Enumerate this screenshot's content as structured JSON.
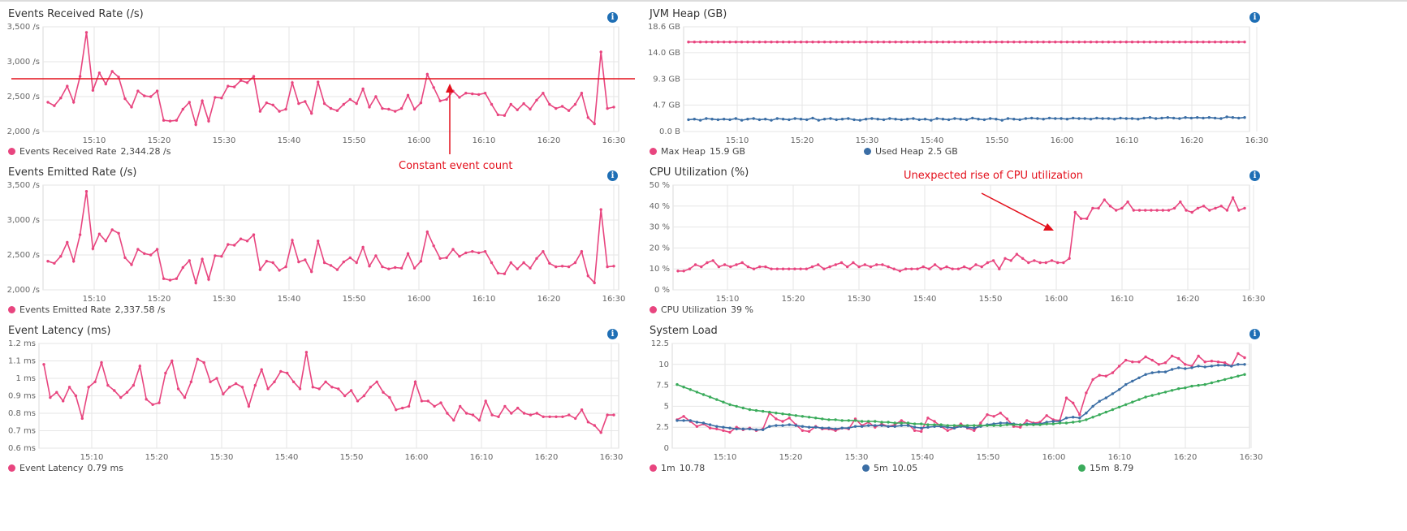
{
  "colors": {
    "pink": "#e8457f",
    "blue": "#3b6ea5",
    "green": "#3aab5b",
    "annotation": "#e3101c",
    "grid": "#e6e6e6",
    "info": "#1f6fb5"
  },
  "icons": {
    "info": "info-icon"
  },
  "annotations": {
    "constant": "Constant event count",
    "cpu": "Unexpected rise of CPU utilization"
  },
  "chart_data": [
    {
      "type": "line",
      "title": "Events Received Rate (/s)",
      "x_ticks": [
        "15:10",
        "15:20",
        "15:30",
        "15:40",
        "15:50",
        "16:00",
        "16:10",
        "16:20",
        "16:30"
      ],
      "y_ticks": [
        "2,000 /s",
        "2,500 /s",
        "3,000 /s",
        "3,500 /s"
      ],
      "ylim": [
        2000,
        3500
      ],
      "series": [
        {
          "name": "Events Received Rate",
          "color": "#e8457f",
          "current": "2,344.28 /s",
          "values": [
            2420,
            2370,
            2480,
            2650,
            2420,
            2790,
            3420,
            2590,
            2840,
            2680,
            2860,
            2780,
            2470,
            2350,
            2580,
            2510,
            2500,
            2580,
            2160,
            2150,
            2160,
            2320,
            2420,
            2100,
            2440,
            2150,
            2490,
            2480,
            2650,
            2640,
            2730,
            2700,
            2790,
            2290,
            2410,
            2380,
            2290,
            2320,
            2700,
            2400,
            2430,
            2260,
            2710,
            2400,
            2330,
            2300,
            2390,
            2460,
            2400,
            2610,
            2350,
            2500,
            2330,
            2320,
            2290,
            2330,
            2520,
            2320,
            2410,
            2820,
            2630,
            2440,
            2460,
            2580,
            2490,
            2550,
            2540,
            2530,
            2550,
            2390,
            2240,
            2230,
            2390,
            2310,
            2400,
            2320,
            2450,
            2550,
            2390,
            2330,
            2360,
            2300,
            2390,
            2550,
            2200,
            2110,
            3140,
            2330,
            2350
          ]
        }
      ]
    },
    {
      "type": "line",
      "title": "Events Emitted Rate (/s)",
      "x_ticks": [
        "15:10",
        "15:20",
        "15:30",
        "15:40",
        "15:50",
        "16:00",
        "16:10",
        "16:20",
        "16:30"
      ],
      "y_ticks": [
        "2,000 /s",
        "2,500 /s",
        "3,000 /s",
        "3,500 /s"
      ],
      "ylim": [
        2000,
        3500
      ],
      "series": [
        {
          "name": "Events Emitted Rate",
          "color": "#e8457f",
          "current": "2,337.58 /s",
          "values": [
            2410,
            2380,
            2480,
            2680,
            2410,
            2790,
            3410,
            2590,
            2800,
            2700,
            2860,
            2810,
            2460,
            2360,
            2580,
            2520,
            2500,
            2580,
            2160,
            2140,
            2160,
            2320,
            2420,
            2100,
            2440,
            2150,
            2490,
            2480,
            2650,
            2640,
            2730,
            2700,
            2790,
            2290,
            2410,
            2390,
            2280,
            2330,
            2710,
            2400,
            2430,
            2260,
            2700,
            2390,
            2350,
            2290,
            2400,
            2460,
            2390,
            2610,
            2340,
            2490,
            2330,
            2300,
            2320,
            2310,
            2520,
            2310,
            2410,
            2830,
            2630,
            2450,
            2460,
            2580,
            2480,
            2530,
            2550,
            2530,
            2550,
            2390,
            2240,
            2230,
            2390,
            2300,
            2390,
            2310,
            2450,
            2550,
            2380,
            2330,
            2340,
            2330,
            2390,
            2550,
            2200,
            2100,
            3150,
            2330,
            2340
          ]
        }
      ]
    },
    {
      "type": "line",
      "title": "Event Latency (ms)",
      "x_ticks": [
        "15:10",
        "15:20",
        "15:30",
        "15:40",
        "15:50",
        "16:00",
        "16:10",
        "16:20",
        "16:30"
      ],
      "y_ticks": [
        "0.6 ms",
        "0.7 ms",
        "0.8 ms",
        "0.9 ms",
        "1 ms",
        "1.1 ms",
        "1.2 ms"
      ],
      "ylim": [
        0.6,
        1.2
      ],
      "series": [
        {
          "name": "Event Latency",
          "color": "#e8457f",
          "current": "0.79 ms",
          "values": [
            1.08,
            0.89,
            0.92,
            0.87,
            0.95,
            0.9,
            0.77,
            0.95,
            0.98,
            1.09,
            0.96,
            0.93,
            0.89,
            0.92,
            0.96,
            1.07,
            0.88,
            0.85,
            0.86,
            1.03,
            1.1,
            0.94,
            0.89,
            0.98,
            1.11,
            1.09,
            0.98,
            1.0,
            0.91,
            0.95,
            0.97,
            0.95,
            0.84,
            0.96,
            1.05,
            0.94,
            0.98,
            1.04,
            1.03,
            0.98,
            0.94,
            1.15,
            0.95,
            0.94,
            0.98,
            0.95,
            0.94,
            0.9,
            0.93,
            0.87,
            0.9,
            0.95,
            0.98,
            0.92,
            0.89,
            0.82,
            0.83,
            0.84,
            0.98,
            0.87,
            0.87,
            0.84,
            0.86,
            0.8,
            0.76,
            0.84,
            0.8,
            0.79,
            0.76,
            0.87,
            0.79,
            0.78,
            0.84,
            0.8,
            0.83,
            0.8,
            0.79,
            0.8,
            0.78,
            0.78,
            0.78,
            0.78,
            0.79,
            0.77,
            0.82,
            0.75,
            0.73,
            0.69,
            0.79,
            0.79
          ]
        }
      ]
    },
    {
      "type": "line",
      "title": "JVM Heap (GB)",
      "x_ticks": [
        "15:10",
        "15:20",
        "15:30",
        "15:40",
        "15:50",
        "16:00",
        "16:10",
        "16:20",
        "16:30"
      ],
      "y_ticks": [
        "0.0 B",
        "4.7 GB",
        "9.3 GB",
        "14.0 GB",
        "18.6 GB"
      ],
      "ylim": [
        0,
        18.6
      ],
      "series": [
        {
          "name": "Max Heap",
          "color": "#e8457f",
          "current": "15.9 GB",
          "constant": 15.9
        },
        {
          "name": "Used Heap",
          "color": "#3b6ea5",
          "current": "2.5 GB",
          "values": [
            2.1,
            2.2,
            2.0,
            2.3,
            2.2,
            2.1,
            2.2,
            2.1,
            2.3,
            2.0,
            2.2,
            2.3,
            2.1,
            2.2,
            2.0,
            2.3,
            2.2,
            2.1,
            2.3,
            2.2,
            2.1,
            2.4,
            2.0,
            2.2,
            2.3,
            2.1,
            2.2,
            2.3,
            2.1,
            2.0,
            2.2,
            2.3,
            2.2,
            2.1,
            2.3,
            2.2,
            2.1,
            2.2,
            2.3,
            2.1,
            2.2,
            2.0,
            2.3,
            2.2,
            2.1,
            2.3,
            2.2,
            2.1,
            2.4,
            2.2,
            2.1,
            2.3,
            2.2,
            2.0,
            2.3,
            2.2,
            2.1,
            2.3,
            2.4,
            2.3,
            2.2,
            2.4,
            2.3,
            2.3,
            2.2,
            2.4,
            2.3,
            2.3,
            2.2,
            2.4,
            2.3,
            2.3,
            2.2,
            2.4,
            2.3,
            2.3,
            2.2,
            2.4,
            2.5,
            2.3,
            2.4,
            2.5,
            2.4,
            2.3,
            2.5,
            2.4,
            2.5,
            2.4,
            2.5,
            2.4,
            2.3,
            2.6,
            2.5,
            2.4,
            2.5
          ]
        }
      ]
    },
    {
      "type": "line",
      "title": "CPU Utilization (%)",
      "x_ticks": [
        "15:10",
        "15:20",
        "15:30",
        "15:40",
        "15:50",
        "16:00",
        "16:10",
        "16:20",
        "16:30"
      ],
      "y_ticks": [
        "0 %",
        "10 %",
        "20 %",
        "30 %",
        "40 %",
        "50 %"
      ],
      "ylim": [
        0,
        50
      ],
      "series": [
        {
          "name": "CPU Utilization",
          "color": "#e8457f",
          "current": "39 %",
          "values": [
            9,
            9,
            10,
            12,
            11,
            13,
            14,
            11,
            12,
            11,
            12,
            13,
            11,
            10,
            11,
            11,
            10,
            10,
            10,
            10,
            10,
            10,
            10,
            11,
            12,
            10,
            11,
            12,
            13,
            11,
            13,
            11,
            12,
            11,
            12,
            12,
            11,
            10,
            9,
            10,
            10,
            10,
            11,
            10,
            12,
            10,
            11,
            10,
            10,
            11,
            10,
            12,
            11,
            13,
            14,
            10,
            15,
            14,
            17,
            15,
            13,
            14,
            13,
            13,
            14,
            13,
            13,
            15,
            37,
            34,
            34,
            39,
            39,
            43,
            40,
            38,
            39,
            42,
            38,
            38,
            38,
            38,
            38,
            38,
            38,
            39,
            42,
            38,
            37,
            39,
            40,
            38,
            39,
            40,
            38,
            44,
            38,
            39
          ]
        }
      ]
    },
    {
      "type": "line",
      "title": "System Load",
      "x_ticks": [
        "15:10",
        "15:20",
        "15:30",
        "15:40",
        "15:50",
        "16:00",
        "16:10",
        "16:20",
        "16:30"
      ],
      "y_ticks": [
        "0",
        "2.5",
        "5",
        "7.5",
        "10",
        "12.5"
      ],
      "ylim": [
        0,
        12.5
      ],
      "series": [
        {
          "name": "1m",
          "color": "#e8457f",
          "current": "10.78",
          "values": [
            3.4,
            3.8,
            3.2,
            2.6,
            2.9,
            2.4,
            2.3,
            2.1,
            1.9,
            2.5,
            2.2,
            2.4,
            2.1,
            2.3,
            4.2,
            3.5,
            3.2,
            3.6,
            2.8,
            2.1,
            2.0,
            2.6,
            2.3,
            2.3,
            2.1,
            2.4,
            2.3,
            3.5,
            2.7,
            3.1,
            2.5,
            2.9,
            2.6,
            2.8,
            3.3,
            2.9,
            2.1,
            2.0,
            3.6,
            3.2,
            2.6,
            2.1,
            2.4,
            2.9,
            2.4,
            2.1,
            3.0,
            4.0,
            3.8,
            4.2,
            3.5,
            2.6,
            2.5,
            3.3,
            3.0,
            3.1,
            3.9,
            3.4,
            3.3,
            6.0,
            5.4,
            4.0,
            6.6,
            8.2,
            8.7,
            8.6,
            9.0,
            9.8,
            10.5,
            10.3,
            10.3,
            10.9,
            10.5,
            10.0,
            10.2,
            11.0,
            10.7,
            10.0,
            9.8,
            11.0,
            10.3,
            10.4,
            10.3,
            10.2,
            9.8,
            11.3,
            10.8
          ]
        },
        {
          "name": "5m",
          "color": "#3b6ea5",
          "current": "10.05",
          "values": [
            3.3,
            3.3,
            3.3,
            3.1,
            3.0,
            2.8,
            2.6,
            2.5,
            2.4,
            2.3,
            2.3,
            2.3,
            2.2,
            2.2,
            2.6,
            2.7,
            2.7,
            2.8,
            2.7,
            2.6,
            2.5,
            2.5,
            2.4,
            2.4,
            2.3,
            2.4,
            2.4,
            2.6,
            2.6,
            2.7,
            2.7,
            2.7,
            2.6,
            2.6,
            2.7,
            2.7,
            2.5,
            2.4,
            2.5,
            2.6,
            2.6,
            2.5,
            2.4,
            2.6,
            2.5,
            2.4,
            2.6,
            2.8,
            2.9,
            3.0,
            3.0,
            2.9,
            2.8,
            2.9,
            2.9,
            2.9,
            3.1,
            3.2,
            3.2,
            3.6,
            3.7,
            3.6,
            4.2,
            5.0,
            5.6,
            6.0,
            6.5,
            7.0,
            7.6,
            8.0,
            8.4,
            8.8,
            9.0,
            9.1,
            9.1,
            9.4,
            9.6,
            9.5,
            9.6,
            9.8,
            9.7,
            9.8,
            9.9,
            9.9,
            9.8,
            10.0,
            10.0
          ]
        },
        {
          "name": "15m",
          "color": "#3aab5b",
          "current": "8.79",
          "values": [
            7.6,
            7.3,
            7.0,
            6.7,
            6.4,
            6.1,
            5.8,
            5.5,
            5.2,
            5.0,
            4.8,
            4.6,
            4.5,
            4.4,
            4.3,
            4.2,
            4.1,
            4.0,
            3.9,
            3.8,
            3.7,
            3.6,
            3.5,
            3.4,
            3.4,
            3.3,
            3.3,
            3.3,
            3.2,
            3.2,
            3.2,
            3.1,
            3.1,
            3.0,
            3.0,
            3.0,
            2.9,
            2.9,
            2.8,
            2.8,
            2.8,
            2.7,
            2.7,
            2.7,
            2.7,
            2.7,
            2.7,
            2.7,
            2.7,
            2.7,
            2.8,
            2.8,
            2.8,
            2.8,
            2.8,
            2.8,
            2.9,
            2.9,
            3.0,
            3.0,
            3.1,
            3.2,
            3.4,
            3.7,
            4.0,
            4.3,
            4.6,
            4.9,
            5.2,
            5.5,
            5.8,
            6.1,
            6.3,
            6.5,
            6.7,
            6.9,
            7.1,
            7.2,
            7.4,
            7.5,
            7.6,
            7.8,
            8.0,
            8.2,
            8.4,
            8.6,
            8.8
          ]
        }
      ]
    }
  ]
}
